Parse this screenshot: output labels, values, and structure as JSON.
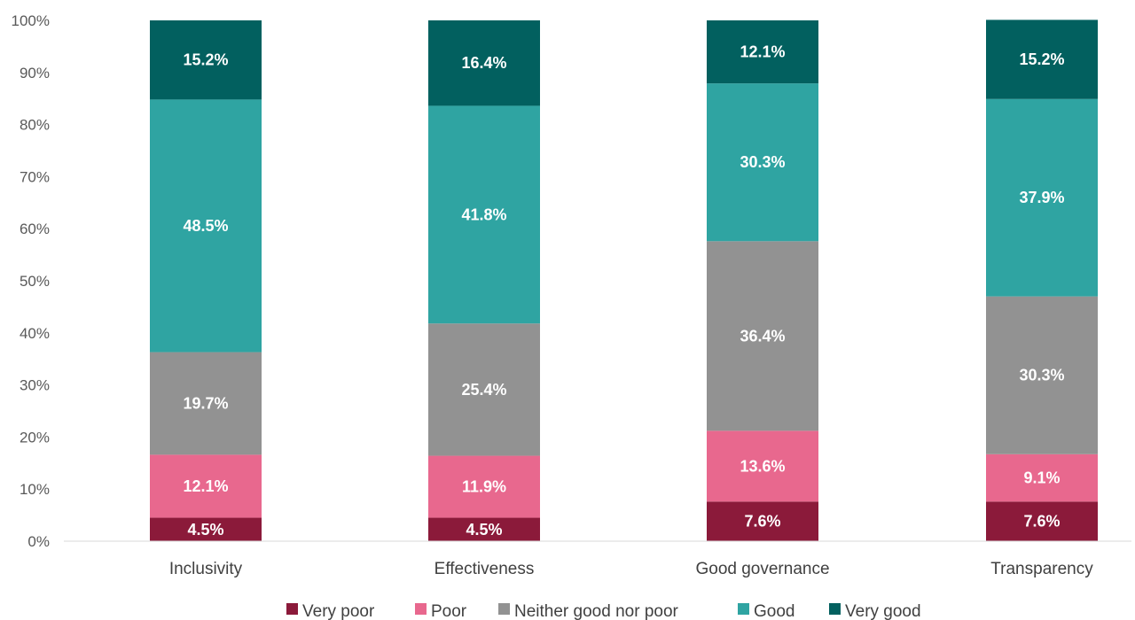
{
  "chart_data": {
    "type": "bar",
    "stacked": true,
    "categories": [
      "Inclusivity",
      "Effectiveness",
      "Good governance",
      "Transparency"
    ],
    "series": [
      {
        "name": "Very poor",
        "color": "#8b1a3a",
        "values": [
          4.5,
          4.5,
          7.6,
          7.6
        ],
        "labels": [
          "4.5%",
          "4.5%",
          "7.6%",
          "7.6%"
        ]
      },
      {
        "name": "Poor",
        "color": "#e8688e",
        "values": [
          12.1,
          11.9,
          13.6,
          9.1
        ],
        "labels": [
          "12.1%",
          "11.9%",
          "13.6%",
          "9.1%"
        ]
      },
      {
        "name": "Neither good nor poor",
        "color": "#929292",
        "values": [
          19.7,
          25.4,
          36.4,
          30.3
        ],
        "labels": [
          "19.7%",
          "25.4%",
          "36.4%",
          "30.3%"
        ]
      },
      {
        "name": "Good",
        "color": "#2fa4a2",
        "values": [
          48.5,
          41.8,
          30.3,
          37.9
        ],
        "labels": [
          "48.5%",
          "41.8%",
          "30.3%",
          "37.9%"
        ]
      },
      {
        "name": "Very good",
        "color": "#02605f",
        "values": [
          15.2,
          16.4,
          12.1,
          15.2
        ],
        "labels": [
          "15.2%",
          "16.4%",
          "12.1%",
          "15.2%"
        ]
      }
    ],
    "yticks": [
      "0%",
      "10%",
      "20%",
      "30%",
      "40%",
      "50%",
      "60%",
      "70%",
      "80%",
      "90%",
      "100%"
    ],
    "ylim": [
      0,
      100
    ],
    "legend_position": "bottom",
    "grid": false
  }
}
